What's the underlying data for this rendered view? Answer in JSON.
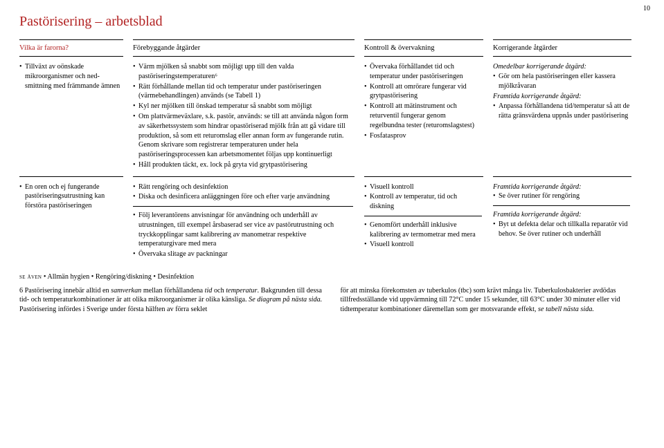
{
  "pagenum": "10",
  "title": "Pastörisering – arbetsblad",
  "headers": {
    "c1": "Vilka är farorna?",
    "c2": "Förebyggande åtgärder",
    "c3": "Kontroll & övervakning",
    "c4": "Korrigerande åtgärder"
  },
  "row1": {
    "c1": {
      "b": [
        "Tillväxt av oönskade mikroorganismer och ned­smittning med främmande ämnen"
      ]
    },
    "c2": {
      "b": [
        "Värm mjölken så snabbt som möjligt upp till den valda pastöriseringstemperaturen⁶",
        "Rätt förhållande mellan tid och temperatur under pastö­riseringen (värmebehandlingen) används (se Tabell 1)",
        "Kyl ner mjölken till önskad temperatur så snabbt som möjligt",
        "Om plattvärmeväxlare, s.k. pastör, används: se till att använda någon form av säkerhetssystem som hindrar opastöriserad mjölk från att gå vidare till produktion, så som ett returomslag eller annan form av fungerande rutin. Genom skrivare som registrerar temperaturen under hela pastöriseringsprocessen kan arbetsmomentet följas upp kontinuerligt",
        "Håll produkten täckt, ex. lock på gryta vid gryt­pastörisering"
      ]
    },
    "c3": {
      "b": [
        "Övervaka förhållandet tid och temperatur under pastöri­seringen",
        "Kontroll att omrörare funge­rar vid grytpastörisering",
        "Kontroll att mätinstrument och returventil fungerar genom regelbundna tester (returomslagstest)",
        "Fosfatasprov"
      ]
    },
    "c4": {
      "lead1": "Omedelbar korrigerande åtgärd:",
      "b1": [
        "Gör om hela pastöriseringen eller kassera mjölkråvaran"
      ],
      "lead2": "Framtida korrigerande åtgärd:",
      "b2": [
        "Anpassa förhållandena tid/tempera­tur så att de rätta gränsvärdena upp­nås under pastörisering"
      ]
    }
  },
  "row2": {
    "c1": {
      "b": [
        "En oren och ej fungerande pastöriseringsutrustning kan förstöra pastörise­ringen"
      ]
    },
    "c2a": {
      "b": [
        "Rätt rengöring och desinfektion",
        "Diska och desinficera anläggningen före och efter varje användning"
      ]
    },
    "c2b": {
      "b": [
        "Följ leverantörens anvisningar för användning och underhåll av utrustningen, till exempel årsbaserad ser vice av pastörutrustning och tryckkopplingar samt kalibrering av manometrar respektive temperaturgivare med mera",
        "Övervaka slitage av packningar"
      ]
    },
    "c3a": {
      "b": [
        "Visuell kontroll",
        "Kontroll av temperatur, tid och diskning"
      ]
    },
    "c3b": {
      "b": [
        "Genomfört underhåll inklusive kalibrering av termometrar med mera",
        "Visuell kontroll"
      ]
    },
    "c4a": {
      "lead": "Framtida korrigerande åtgärd:",
      "b": [
        "Se över rutiner för rengöring"
      ]
    },
    "c4b": {
      "lead": "Framtida korrigerande åtgärd:",
      "b": [
        "Byt ut defekta delar och tillkalla reparatör vid behov. Se över rutiner och underhåll"
      ]
    }
  },
  "see_also": {
    "label": "se även",
    "items": "• Allmän hygien • Rengöring/diskning • Desinfektion"
  },
  "footnote": {
    "left": "6  Pastörisering innebär alltid en <em>samverkan</em> mellan förhållandena <em>tid</em> och <em>temperatur</em>. Bakgrun­den till dessa tid- och temperaturkombinationer är att olika mikroorganismer är olika känsliga. <em>Se diagram på nästa sida.</em> Pastörisering infördes i Sverige under första hälften av förra seklet",
    "right": "för att minska förekomsten av tuberkulos (tbc) som krävt många liv. Tuberkulosbakterier avdödas tillfredsställande vid uppvärmning till 72°C under 15 sekunder, till 63°C under 30 minuter eller vid tidtemperatur kombinationer däremellan som ger motsvarande effekt, <em>se tabell nästa sida.</em>"
  }
}
